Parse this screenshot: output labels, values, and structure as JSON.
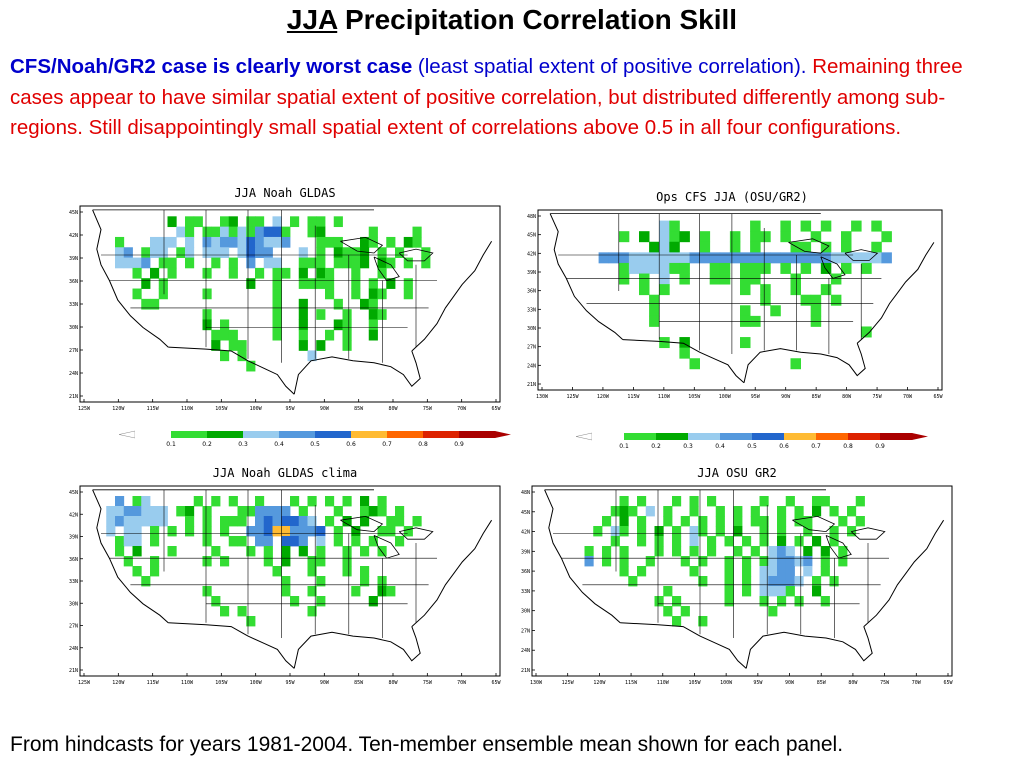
{
  "title": {
    "prefix": "JJA",
    "rest": " Precipitation Correlation Skill"
  },
  "body": {
    "blue_bold": "CFS/Noah/GR2 case is clearly worst case",
    "blue_plain": " (least spatial extent of positive correlation).",
    "red_text": "Remaining three cases appear to have similar spatial extent of positive correlation, but distributed differently among sub-regions. Still disappointingly small spatial extent of correlations above 0.5 in all four configurations."
  },
  "footer": "From hindcasts for years 1981-2004. Ten-member ensemble mean shown for each panel.",
  "colors": {
    "c01": "#33dd33",
    "c02": "#00aa00",
    "c03": "#99ccee",
    "c04": "#5599dd",
    "c05": "#2266cc",
    "c06": "#ffbb33",
    "c07": "#ff6600",
    "c08": "#dd2200",
    "c09": "#aa0000"
  },
  "chart_data": [
    {
      "type": "heatmap",
      "title": "JJA Noah GLDAS",
      "lon_ticks": [
        "125W",
        "120W",
        "115W",
        "110W",
        "105W",
        "100W",
        "95W",
        "90W",
        "85W",
        "80W",
        "75W",
        "70W",
        "65W"
      ],
      "lat_ticks": [
        "45N",
        "42N",
        "39N",
        "36N",
        "33N",
        "30N",
        "27N",
        "24N",
        "21N"
      ],
      "colorbar_labels": [
        "0.1",
        "0.2",
        "0.3",
        "0.4",
        "0.5",
        "0.6",
        "0.7",
        "0.8",
        "0.9"
      ],
      "grid": [
        "................................................",
        "..........2.11..12.11.3.1.11.1..................",
        "...........31.1131314551..12.....1....1.........",
        "....1...333.3.4344354334...111..21.1.21.........",
        "....34.133.13.333.3544...3.1.2112.1.1..1........",
        "....3334.11.1..1.1.4.33..111.1112.21.1.1........",
        "......1.2.1...1..1..1.11.2.21..1..1.............",
        ".......2.1.........2..1..1111..1.1.2.1..........",
        "......1..1....1.......1.....1..1.21..1..........",
        ".......11.............1..2...1..21..............",
        "..............1.......1..2.1..1..21.............",
        "..............2.1.....1..2...21..1..............",
        "...............111....1..1..1.1..2..............",
        "...............2.11......2.2..1.................",
        "................1.1.......3.....................",
        "...................1............................",
        "................................................",
        "................................................",
        "................................................"
      ]
    },
    {
      "type": "heatmap",
      "title": "Ops CFS JJA (OSU/GR2)",
      "lon_ticks": [
        "130W",
        "125W",
        "120W",
        "115W",
        "110W",
        "105W",
        "100W",
        "95W",
        "90W",
        "85W",
        "80W",
        "75W",
        "70W",
        "65W"
      ],
      "lat_ticks": [
        "48N",
        "45N",
        "42N",
        "39N",
        "36N",
        "33N",
        "30N",
        "27N",
        "24N",
        "21N"
      ],
      "colorbar_labels": [
        "0.1",
        "0.2",
        "0.3",
        "0.4",
        "0.5",
        "0.6",
        "0.7",
        "0.8",
        "0.9"
      ],
      "grid": [
        "........................................",
        "............31.......1..1.1.1..1.1......",
        "........1.2.312.1..1.11.1..1..1...1.....",
        "...........232..1..1.1...11.1.1..1......",
        "......44433333344444444444444333334.....",
        "........1333311..11.111.1.1.2.1.1.......",
        "........1.1.3.1..11.11...1...1..........",
        "..........1.1.......1.1..1..1...........",
        "...........1..........1...11.1..........",
        "...........1........1..1...1............",
        "...........1........11.....1............",
        "................................1.......",
        "............1.2.....1...................",
        "..............1.........................",
        "...............1.........1..............",
        "........................................",
        "........................................"
      ]
    },
    {
      "type": "heatmap",
      "title": "JJA Noah GLDAS clima",
      "lon_ticks": [
        "125W",
        "120W",
        "115W",
        "110W",
        "105W",
        "100W",
        "95W",
        "90W",
        "85W",
        "80W",
        "75W",
        "70W",
        "65W"
      ],
      "lat_ticks": [
        "45N",
        "42N",
        "39N",
        "36N",
        "33N",
        "30N",
        "27N",
        "24N",
        "21N"
      ],
      "colorbar_labels": [],
      "grid": [
        "................................................",
        "....4.13.....1.1.1..1...1.1.1.1.2.1.............",
        "...3344333.12.1...114444.1...1..121.1...........",
        "...3433333..1.1.111.4545543.1.2.2..11.1.........",
        "...3.33.1.1.1.1.1..445664445.1.2..11.1..........",
        "....133.1.....1..11.44.554.3.1.1.1..1...........",
        "....1.2...1....1...1.1.2.2.1..1.1.1.............",
        ".....1..1.....1.1....1.2..11..1.................",
        "......1.1.............1...1...1.1...............",
        ".......1...............1...1....1.1.............",
        "..............1........1..1....1..21............",
        "...............1........1..1.....2..............",
        "................1.1.......1.....................",
        "...................1............................",
        "................................................",
        "................................................",
        "................................................",
        "................................................",
        "................................................"
      ]
    },
    {
      "type": "heatmap",
      "title": "JJA OSU GR2",
      "lon_ticks": [
        "130W",
        "125W",
        "120W",
        "115W",
        "110W",
        "105W",
        "100W",
        "95W",
        "90W",
        "85W",
        "80W",
        "75W",
        "70W",
        "65W"
      ],
      "lat_ticks": [
        "48N",
        "45N",
        "42N",
        "39N",
        "36N",
        "33N",
        "30N",
        "27N",
        "24N",
        "21N"
      ],
      "colorbar_labels": [],
      "grid": [
        "................................................",
        "..........1.1...1.1.1.....1..1..11...1..........",
        ".........121.3.1..1..1.1.1..1.1.2.1.1...........",
        "........1.2.1..1.1.1.1.1.11.1.11...1.1..........",
        ".......1.31.1.2.1.31.1.2..1.1..1..1.1...........",
        ".........1..1.1.1.3.1.1.1.1.2.1.2.1.............",
        "......1.1.1...1.1.1.1..1.1.343.2.2.1............",
        "......4.1.1..1...1.1..1.1.134434.1.1............",
        "..........1.1.....1...1.1.3344.3.1..............",
        "...........1.......1..1.1.34443.1.1.............",
        "...............1......1.1.3331..2...............",
        "..............1.1.....1...1.1.1..1..............",
        "...............1.1.........1....................",
        "................1..1............................",
        "................................................",
        "................................................",
        "................................................",
        "................................................",
        "................................................"
      ]
    }
  ]
}
